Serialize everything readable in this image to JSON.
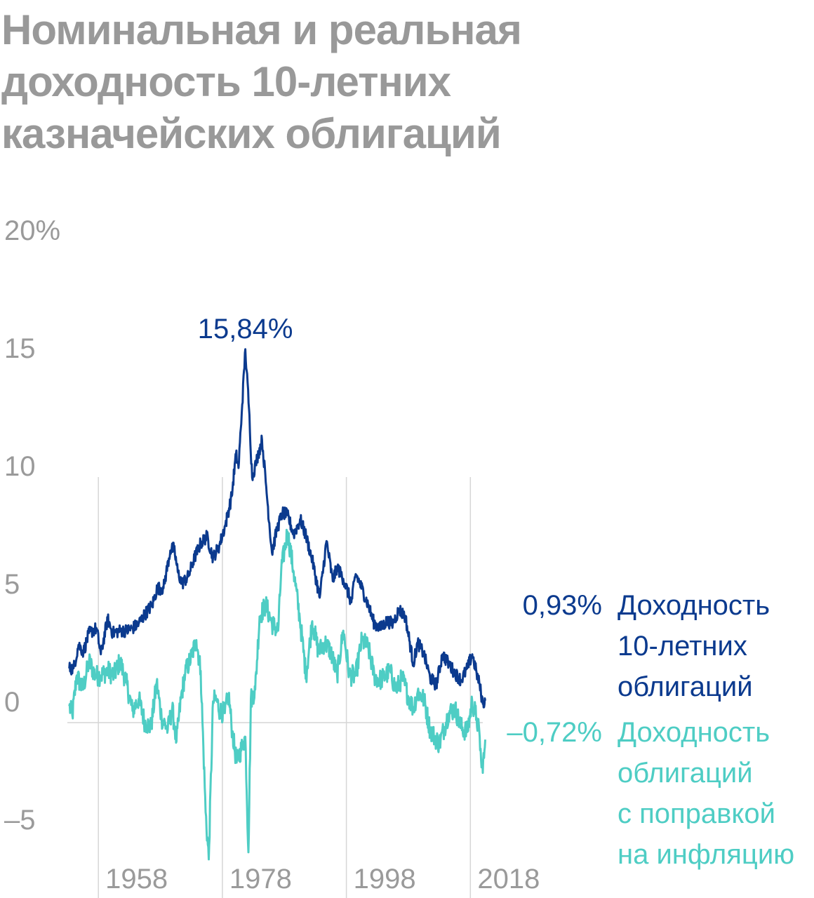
{
  "title": "Номинальная и реальная доходность 10-летних казначейских облигаций",
  "colors": {
    "nominal": "#0b3a8e",
    "real": "#4ecdc4",
    "axis_text": "#9a9a9a",
    "title": "#999999",
    "grid": "#d6d6d6"
  },
  "chart_data": {
    "type": "line",
    "title": "Номинальная и реальная доходность 10-летних казначейских облигаций",
    "xlabel": "",
    "ylabel": "",
    "x_range": [
      1953,
      2020
    ],
    "ylim": [
      -6,
      20
    ],
    "y_ticks": [
      "20%",
      "15",
      "10",
      "5",
      "0",
      "–5"
    ],
    "y_tick_values": [
      20,
      15,
      10,
      5,
      0,
      -5
    ],
    "x_ticks": [
      "1958",
      "1978",
      "1998",
      "2018"
    ],
    "x_tick_values": [
      1958,
      1978,
      1998,
      2018
    ],
    "grid": "vertical lines at x ticks, zero line",
    "legend": "right, labels at line ends",
    "series": [
      {
        "name": "Доходность 10-летних облигаций",
        "label_lines": [
          "Доходность",
          "10-летних",
          "облигаций"
        ],
        "end_value_label": "0,93%",
        "x": [
          1953.3,
          1954.0,
          1954.8,
          1955.6,
          1956.5,
          1957.7,
          1958.4,
          1959.5,
          1960.3,
          1961.5,
          1962.5,
          1963.5,
          1964.5,
          1965.5,
          1966.7,
          1967.5,
          1968.5,
          1969.6,
          1970.2,
          1970.8,
          1971.5,
          1972.5,
          1973.5,
          1974.5,
          1975.5,
          1976.5,
          1977.5,
          1978.5,
          1979.5,
          1980.2,
          1980.6,
          1981.2,
          1981.7,
          1982.3,
          1982.8,
          1983.4,
          1984.4,
          1985.0,
          1986.0,
          1986.8,
          1987.7,
          1988.5,
          1989.5,
          1990.6,
          1991.5,
          1992.5,
          1993.7,
          1994.8,
          1995.8,
          1996.5,
          1997.5,
          1998.8,
          1999.5,
          2000.2,
          2001.5,
          2002.5,
          2003.5,
          2004.5,
          2005.5,
          2006.5,
          2007.5,
          2008.8,
          2009.5,
          2010.5,
          2011.5,
          2012.5,
          2013.5,
          2014.5,
          2015.5,
          2016.5,
          2017.5,
          2018.3,
          2019.0,
          2019.5,
          2020.0,
          2020.4
        ],
        "values": [
          2.3,
          2.3,
          3.3,
          3.0,
          3.8,
          4.0,
          2.9,
          4.4,
          3.8,
          3.9,
          3.9,
          4.0,
          4.2,
          4.6,
          5.0,
          5.7,
          5.7,
          7.3,
          7.4,
          6.4,
          5.9,
          6.2,
          7.0,
          7.6,
          7.9,
          7.0,
          7.5,
          8.4,
          9.6,
          11.4,
          10.8,
          13.5,
          15.84,
          13.3,
          10.4,
          11.0,
          12.0,
          10.2,
          7.2,
          8.2,
          8.9,
          8.8,
          8.0,
          8.6,
          7.9,
          6.9,
          5.3,
          7.7,
          6.0,
          6.6,
          6.1,
          5.1,
          6.3,
          5.9,
          5.0,
          4.2,
          4.0,
          4.3,
          4.2,
          4.8,
          4.5,
          2.5,
          3.4,
          2.9,
          1.9,
          1.6,
          2.9,
          2.5,
          2.1,
          1.8,
          2.3,
          2.9,
          2.1,
          1.6,
          0.8,
          0.93
        ]
      },
      {
        "name": "Доходность облигаций с поправкой на инфляцию",
        "label_lines": [
          "Доходность",
          "облигаций",
          "с поправкой",
          "на инфляцию"
        ],
        "end_value_label": "–0,72%",
        "x": [
          1953.3,
          1953.8,
          1954.5,
          1955.5,
          1956.5,
          1957.5,
          1958.4,
          1959.5,
          1960.5,
          1961.5,
          1962.5,
          1963.5,
          1964.5,
          1965.5,
          1966.5,
          1967.4,
          1968.2,
          1969.2,
          1969.9,
          1970.2,
          1970.6,
          1971.3,
          1972.0,
          1973.0,
          1973.8,
          1974.5,
          1975.3,
          1975.8,
          1976.5,
          1977.0,
          1977.6,
          1978.4,
          1979.0,
          1979.6,
          1980.3,
          1981.2,
          1981.7,
          1982.2,
          1982.6,
          1983.3,
          1984.0,
          1985.0,
          1986.0,
          1987.0,
          1987.5,
          1988.5,
          1989.5,
          1990.5,
          1991.5,
          1992.5,
          1993.5,
          1994.5,
          1995.5,
          1996.5,
          1997.5,
          1998.5,
          1999.5,
          2000.5,
          2001.5,
          2002.5,
          2003.3,
          2004.0,
          2005.0,
          2006.0,
          2007.0,
          2008.0,
          2008.8,
          2009.5,
          2010.5,
          2011.5,
          2012.2,
          2013.0,
          2014.5,
          2015.5,
          2016.5,
          2017.5,
          2018.3,
          2019.0,
          2019.5,
          2019.8,
          2020.2,
          2020.4
        ],
        "values": [
          0.7,
          0.3,
          2.0,
          1.4,
          2.6,
          2.0,
          2.0,
          2.2,
          2.0,
          2.6,
          1.7,
          0.5,
          1.0,
          0.0,
          -0.2,
          1.7,
          0.2,
          -0.3,
          0.6,
          0.0,
          -0.8,
          1.0,
          2.1,
          2.8,
          3.5,
          2.2,
          -3.8,
          -5.8,
          0.9,
          1.0,
          0.5,
          0.4,
          1.2,
          -0.4,
          -1.7,
          -1.0,
          -0.6,
          -5.5,
          1.0,
          1.4,
          4.5,
          5.0,
          4.2,
          3.9,
          6.5,
          8.1,
          6.4,
          4.4,
          2.0,
          4.3,
          3.0,
          3.4,
          3.0,
          2.0,
          3.9,
          2.0,
          2.0,
          3.5,
          3.2,
          2.0,
          1.8,
          1.9,
          2.2,
          1.4,
          1.9,
          1.1,
          0.6,
          1.3,
          1.0,
          -0.3,
          -0.6,
          -0.9,
          0.4,
          0.6,
          -0.2,
          -0.4,
          0.9,
          0.2,
          -0.6,
          -1.9,
          -1.5,
          -0.72
        ]
      }
    ],
    "annotations": [
      {
        "text": "15,84%",
        "series": 0
      }
    ]
  }
}
